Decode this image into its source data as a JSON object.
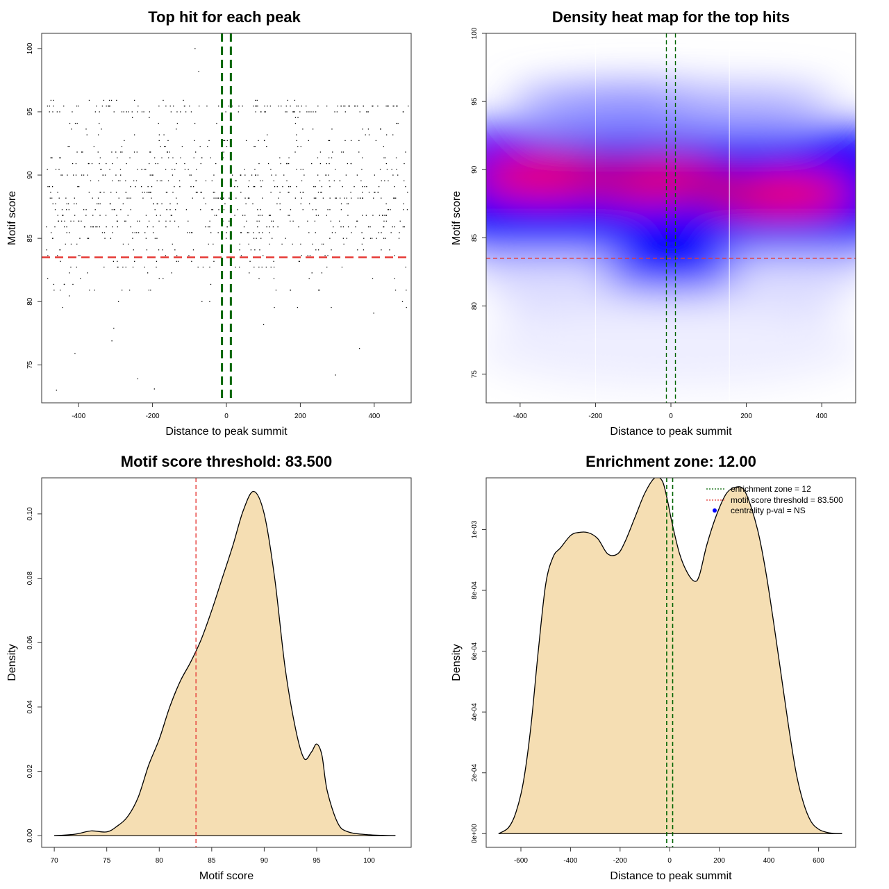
{
  "colors": {
    "threshold": "#e53935",
    "zone": "#006400",
    "fill": "#f5deb3",
    "point": "#000000",
    "heat_low": "#ffffff",
    "heat_mid": "#0000ff",
    "heat_high": "#ff0000",
    "legend_dot": "#0000ff"
  },
  "chart_data": [
    {
      "id": "scatter",
      "type": "scatter",
      "title": "Top hit for each peak",
      "xlabel": "Distance to peak summit",
      "ylabel": "Motif score",
      "xlim": [
        -500,
        500
      ],
      "ylim": [
        72,
        101.2
      ],
      "xticks": [
        "-400",
        "-200",
        "0",
        "200",
        "400"
      ],
      "yticks": [
        "75",
        "80",
        "85",
        "90",
        "95",
        "100"
      ],
      "threshold_y": 83.5,
      "zone_x": [
        -12,
        12
      ],
      "n_points": 950,
      "sample_points": [
        [
          -85,
          100
        ],
        [
          -75,
          98.2
        ],
        [
          -410,
          75.9
        ],
        [
          -460,
          73
        ],
        [
          -240,
          73.9
        ],
        [
          -195,
          73.1
        ],
        [
          295,
          74.2
        ],
        [
          360,
          76.3
        ],
        [
          -310,
          76.9
        ],
        [
          -305,
          77.9
        ]
      ]
    },
    {
      "id": "heatmap",
      "type": "heatmap",
      "title": "Density heat map for the top hits",
      "xlabel": "Distance to peak summit",
      "ylabel": "Motif score",
      "xlim": [
        -490,
        490
      ],
      "ylim": [
        72.9,
        100
      ],
      "xticks": [
        "-400",
        "-200",
        "0",
        "200",
        "400"
      ],
      "yticks": [
        "75",
        "80",
        "85",
        "90",
        "95",
        "100"
      ],
      "threshold_y": 83.5,
      "zone_x": [
        -12,
        12
      ],
      "density_peaks": [
        {
          "x": -320,
          "y": 89.5,
          "level": "high"
        },
        {
          "x": -40,
          "y": 89.2,
          "level": "high"
        },
        {
          "x": 280,
          "y": 88.2,
          "level": "high"
        },
        {
          "x": -100,
          "y": 95,
          "level": "low"
        },
        {
          "x": 200,
          "y": 95,
          "level": "low"
        }
      ],
      "white_lines_x": [
        -200,
        155
      ]
    },
    {
      "id": "score-density",
      "type": "area",
      "title": "Motif score threshold: 83.500",
      "xlabel": "Motif score",
      "ylabel": "Density",
      "xlim": [
        68.8,
        104
      ],
      "ylim": [
        -0.0036,
        0.1112
      ],
      "xticks": [
        "70",
        "75",
        "80",
        "85",
        "90",
        "95",
        "100"
      ],
      "yticks": [
        "0.00",
        "0.02",
        "0.04",
        "0.06",
        "0.08",
        "0.10"
      ],
      "threshold_x": 83.5,
      "x": [
        70,
        72,
        73.5,
        75,
        76,
        77,
        78,
        79,
        80,
        81,
        82,
        83,
        84,
        85,
        86,
        87,
        88,
        89,
        90,
        91,
        92,
        93,
        93.8,
        94.5,
        95,
        95.5,
        96,
        97,
        98,
        100,
        102.5
      ],
      "y": [
        0,
        0.0005,
        0.0015,
        0.0012,
        0.003,
        0.006,
        0.012,
        0.022,
        0.03,
        0.04,
        0.048,
        0.054,
        0.061,
        0.07,
        0.08,
        0.09,
        0.101,
        0.107,
        0.1,
        0.08,
        0.052,
        0.033,
        0.024,
        0.026,
        0.0285,
        0.025,
        0.014,
        0.004,
        0.0012,
        0.0003,
        0
      ]
    },
    {
      "id": "distance-density",
      "type": "area",
      "title": "Enrichment zone: 12.00",
      "xlabel": "Distance to peak summit",
      "ylabel": "Density",
      "xlim": [
        -740,
        750
      ],
      "ylim": [
        -4.5e-05,
        0.00117
      ],
      "xticks": [
        "-600",
        "-400",
        "-200",
        "0",
        "200",
        "400",
        "600"
      ],
      "yticks": [
        "0e+00",
        "2e-04",
        "4e-04",
        "6e-04",
        "8e-04",
        "1e-03"
      ],
      "zone_x": [
        -12,
        12
      ],
      "x": [
        -690,
        -650,
        -620,
        -590,
        -560,
        -530,
        -500,
        -470,
        -440,
        -400,
        -370,
        -330,
        -290,
        -250,
        -210,
        -180,
        -140,
        -100,
        -60,
        -30,
        -10,
        10,
        40,
        70,
        100,
        120,
        150,
        190,
        230,
        270,
        300,
        330,
        360,
        390,
        420,
        450,
        480,
        510,
        540,
        570,
        600,
        630,
        660,
        695
      ],
      "y": [
        0,
        2e-05,
        7e-05,
        0.00017,
        0.00035,
        0.0006,
        0.00082,
        0.00091,
        0.00094,
        0.00098,
        0.00099,
        0.00099,
        0.00097,
        0.00092,
        0.00092,
        0.00096,
        0.00104,
        0.00112,
        0.00117,
        0.00116,
        0.0011,
        0.00102,
        0.00092,
        0.00086,
        0.00083,
        0.00085,
        0.00095,
        0.00105,
        0.00112,
        0.00114,
        0.00113,
        0.00107,
        0.00098,
        0.00085,
        0.00069,
        0.00052,
        0.00035,
        0.0002,
        0.0001,
        4e-05,
        1.5e-05,
        5e-06,
        1e-06,
        0
      ],
      "legend": {
        "placement": "top-right",
        "entries": [
          {
            "label": "enrichment zone = 12",
            "style": "dotted",
            "color_key": "zone"
          },
          {
            "label": "motif score threshold = 83.500",
            "style": "dotted",
            "color_key": "threshold"
          },
          {
            "label": "centrality p-val = NS",
            "style": "point",
            "color_key": "legend_dot"
          }
        ]
      }
    }
  ]
}
